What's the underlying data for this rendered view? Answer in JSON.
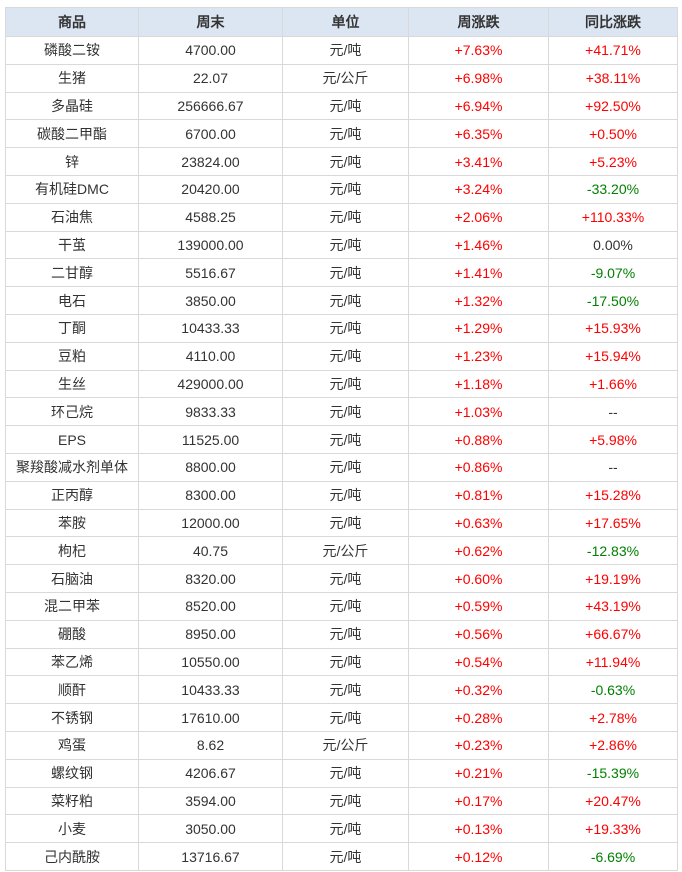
{
  "colors": {
    "up": "#fe0000",
    "down": "#008000",
    "neutral": "#333333",
    "header_bg": "#dce6f2",
    "header_text": "#333333",
    "border": "#d9d9d9",
    "row_bg": "#ffffff",
    "page_bg": "#ffffff"
  },
  "chart_data": {
    "type": "table",
    "columns": [
      "商品",
      "周末",
      "单位",
      "周涨跌",
      "同比涨跌"
    ],
    "rows": [
      [
        "磷酸二铵",
        "4700.00",
        "元/吨",
        "+7.63%",
        "+41.71%"
      ],
      [
        "生猪",
        "22.07",
        "元/公斤",
        "+6.98%",
        "+38.11%"
      ],
      [
        "多晶硅",
        "256666.67",
        "元/吨",
        "+6.94%",
        "+92.50%"
      ],
      [
        "碳酸二甲酯",
        "6700.00",
        "元/吨",
        "+6.35%",
        "+0.50%"
      ],
      [
        "锌",
        "23824.00",
        "元/吨",
        "+3.41%",
        "+5.23%"
      ],
      [
        "有机硅DMC",
        "20420.00",
        "元/吨",
        "+3.24%",
        "-33.20%"
      ],
      [
        "石油焦",
        "4588.25",
        "元/吨",
        "+2.06%",
        "+110.33%"
      ],
      [
        "干茧",
        "139000.00",
        "元/吨",
        "+1.46%",
        "0.00%"
      ],
      [
        "二甘醇",
        "5516.67",
        "元/吨",
        "+1.41%",
        "-9.07%"
      ],
      [
        "电石",
        "3850.00",
        "元/吨",
        "+1.32%",
        "-17.50%"
      ],
      [
        "丁酮",
        "10433.33",
        "元/吨",
        "+1.29%",
        "+15.93%"
      ],
      [
        "豆粕",
        "4110.00",
        "元/吨",
        "+1.23%",
        "+15.94%"
      ],
      [
        "生丝",
        "429000.00",
        "元/吨",
        "+1.18%",
        "+1.66%"
      ],
      [
        "环己烷",
        "9833.33",
        "元/吨",
        "+1.03%",
        "--"
      ],
      [
        "EPS",
        "11525.00",
        "元/吨",
        "+0.88%",
        "+5.98%"
      ],
      [
        "聚羧酸减水剂单体",
        "8800.00",
        "元/吨",
        "+0.86%",
        "--"
      ],
      [
        "正丙醇",
        "8300.00",
        "元/吨",
        "+0.81%",
        "+15.28%"
      ],
      [
        "苯胺",
        "12000.00",
        "元/吨",
        "+0.63%",
        "+17.65%"
      ],
      [
        "枸杞",
        "40.75",
        "元/公斤",
        "+0.62%",
        "-12.83%"
      ],
      [
        "石脑油",
        "8320.00",
        "元/吨",
        "+0.60%",
        "+19.19%"
      ],
      [
        "混二甲苯",
        "8520.00",
        "元/吨",
        "+0.59%",
        "+43.19%"
      ],
      [
        "硼酸",
        "8950.00",
        "元/吨",
        "+0.56%",
        "+66.67%"
      ],
      [
        "苯乙烯",
        "10550.00",
        "元/吨",
        "+0.54%",
        "+11.94%"
      ],
      [
        "顺酐",
        "10433.33",
        "元/吨",
        "+0.32%",
        "-0.63%"
      ],
      [
        "不锈钢",
        "17610.00",
        "元/吨",
        "+0.28%",
        "+2.78%"
      ],
      [
        "鸡蛋",
        "8.62",
        "元/公斤",
        "+0.23%",
        "+2.86%"
      ],
      [
        "螺纹钢",
        "4206.67",
        "元/吨",
        "+0.21%",
        "-15.39%"
      ],
      [
        "菜籽粕",
        "3594.00",
        "元/吨",
        "+0.17%",
        "+20.47%"
      ],
      [
        "小麦",
        "3050.00",
        "元/吨",
        "+0.13%",
        "+19.33%"
      ],
      [
        "己内酰胺",
        "13716.67",
        "元/吨",
        "+0.12%",
        "-6.69%"
      ]
    ]
  }
}
